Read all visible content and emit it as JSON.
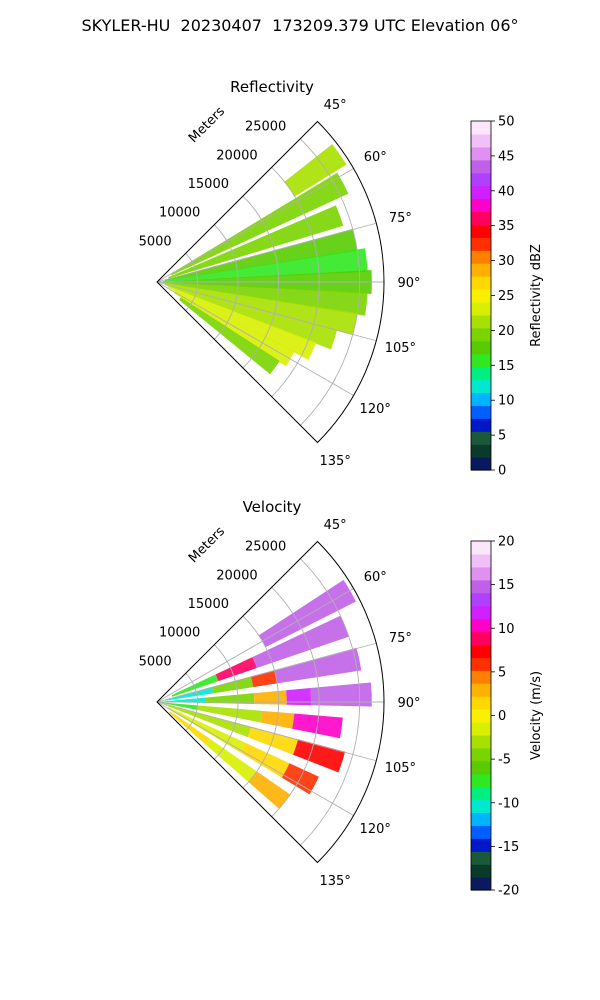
{
  "figure": {
    "title": "SKYLER-HU  20230407  173209.379 UTC Elevation 06°"
  },
  "chart_data": [
    {
      "type": "polar-sector",
      "title": "Reflectivity",
      "rlabel": "Meters",
      "theta_range_deg": [
        45,
        135
      ],
      "theta_ticks": [
        "45°",
        "60°",
        "75°",
        "90°",
        "105°",
        "120°",
        "135°"
      ],
      "r_ticks": [
        5000,
        10000,
        15000,
        20000,
        25000
      ],
      "r_max": 28000,
      "colorbar": {
        "label": "Reflectivity dBZ",
        "range": [
          0,
          50
        ],
        "ticks": [
          0,
          5,
          10,
          15,
          20,
          25,
          30,
          35,
          40,
          45,
          50
        ],
        "colors": [
          "#0b1a5e",
          "#0a3a2a",
          "#1a5a3a",
          "#0018c8",
          "#0060ff",
          "#00b4ff",
          "#00e8d0",
          "#00f080",
          "#30e820",
          "#58cc00",
          "#7ad400",
          "#a8e000",
          "#d8f000",
          "#f8f000",
          "#ffd800",
          "#ffb000",
          "#ff8000",
          "#ff3000",
          "#ff0000",
          "#ff0060",
          "#ff00c8",
          "#d020ff",
          "#b040ff",
          "#c060e8",
          "#e090f0",
          "#f0c0f8",
          "#fce6fc"
        ]
      },
      "cells": [
        {
          "theta": 55,
          "r": [
            20000,
            27500
          ],
          "value": 21
        },
        {
          "theta": 62,
          "r": [
            2000,
            26000
          ],
          "value": 20
        },
        {
          "theta": 70,
          "r": [
            1500,
            24000
          ],
          "value": 19
        },
        {
          "theta": 78,
          "r": [
            1000,
            25000
          ],
          "value": 17
        },
        {
          "theta": 84,
          "r": [
            800,
            26000
          ],
          "value": 16
        },
        {
          "theta": 90,
          "r": [
            500,
            26500
          ],
          "value": 18
        },
        {
          "theta": 96,
          "r": [
            500,
            26000
          ],
          "value": 19
        },
        {
          "theta": 102,
          "r": [
            800,
            25000
          ],
          "value": 21
        },
        {
          "theta": 108,
          "r": [
            1000,
            23000
          ],
          "value": 22
        },
        {
          "theta": 114,
          "r": [
            1500,
            21000
          ],
          "value": 24
        },
        {
          "theta": 120,
          "r": [
            2500,
            19000
          ],
          "value": 23
        },
        {
          "theta": 126,
          "r": [
            3500,
            18000
          ],
          "value": 20
        }
      ]
    },
    {
      "type": "polar-sector",
      "title": "Velocity",
      "rlabel": "Meters",
      "theta_range_deg": [
        45,
        135
      ],
      "theta_ticks": [
        "45°",
        "60°",
        "75°",
        "90°",
        "105°",
        "120°",
        "135°"
      ],
      "r_ticks": [
        5000,
        10000,
        15000,
        20000,
        25000
      ],
      "r_max": 28000,
      "colorbar": {
        "label": "Velocity (m/s)",
        "range": [
          -20,
          20
        ],
        "ticks": [
          -20,
          -15,
          -10,
          -5,
          0,
          5,
          10,
          15,
          20
        ],
        "colors": [
          "#0b1a5e",
          "#0a3a2a",
          "#1a5a3a",
          "#0018c8",
          "#0060ff",
          "#00b4ff",
          "#00e8d0",
          "#00f080",
          "#30e820",
          "#58cc00",
          "#7ad400",
          "#a8e000",
          "#d8f000",
          "#f8f000",
          "#ffd800",
          "#ffb000",
          "#ff8000",
          "#ff3000",
          "#ff0000",
          "#ff0060",
          "#ff00c8",
          "#d020ff",
          "#b040ff",
          "#c060e8",
          "#e090f0",
          "#f0c0f8",
          "#fce6fc"
        ]
      },
      "cells": [
        {
          "theta": 60,
          "r": [
            15000,
            27500
          ],
          "value": 15
        },
        {
          "theta": 68,
          "r": [
            2000,
            8000
          ],
          "value": -7
        },
        {
          "theta": 68,
          "r": [
            8000,
            13000
          ],
          "value": 9
        },
        {
          "theta": 68,
          "r": [
            13000,
            25000
          ],
          "value": 15
        },
        {
          "theta": 78,
          "r": [
            1000,
            7000
          ],
          "value": -11
        },
        {
          "theta": 78,
          "r": [
            7000,
            12000
          ],
          "value": -5
        },
        {
          "theta": 78,
          "r": [
            12000,
            15000
          ],
          "value": 6
        },
        {
          "theta": 78,
          "r": [
            15000,
            25500
          ],
          "value": 15
        },
        {
          "theta": 88,
          "r": [
            500,
            6000
          ],
          "value": -10
        },
        {
          "theta": 88,
          "r": [
            6000,
            12000
          ],
          "value": -4
        },
        {
          "theta": 88,
          "r": [
            12000,
            16000
          ],
          "value": 3
        },
        {
          "theta": 88,
          "r": [
            16000,
            19000
          ],
          "value": 12
        },
        {
          "theta": 88,
          "r": [
            19000,
            26500
          ],
          "value": 15
        },
        {
          "theta": 98,
          "r": [
            500,
            5000
          ],
          "value": -7
        },
        {
          "theta": 98,
          "r": [
            5000,
            13000
          ],
          "value": -3
        },
        {
          "theta": 98,
          "r": [
            13000,
            17000
          ],
          "value": 3
        },
        {
          "theta": 98,
          "r": [
            17000,
            23000
          ],
          "value": 10
        },
        {
          "theta": 108,
          "r": [
            800,
            12000
          ],
          "value": -3
        },
        {
          "theta": 108,
          "r": [
            12000,
            18000
          ],
          "value": 2
        },
        {
          "theta": 108,
          "r": [
            18000,
            24000
          ],
          "value": 8
        },
        {
          "theta": 118,
          "r": [
            1500,
            12000
          ],
          "value": -2
        },
        {
          "theta": 118,
          "r": [
            12000,
            18000
          ],
          "value": 2
        },
        {
          "theta": 118,
          "r": [
            18000,
            22000
          ],
          "value": 6
        },
        {
          "theta": 128,
          "r": [
            2000,
            8000
          ],
          "value": 2
        },
        {
          "theta": 128,
          "r": [
            8000,
            15000
          ],
          "value": -2
        },
        {
          "theta": 128,
          "r": [
            15000,
            20000
          ],
          "value": 3
        }
      ]
    }
  ]
}
